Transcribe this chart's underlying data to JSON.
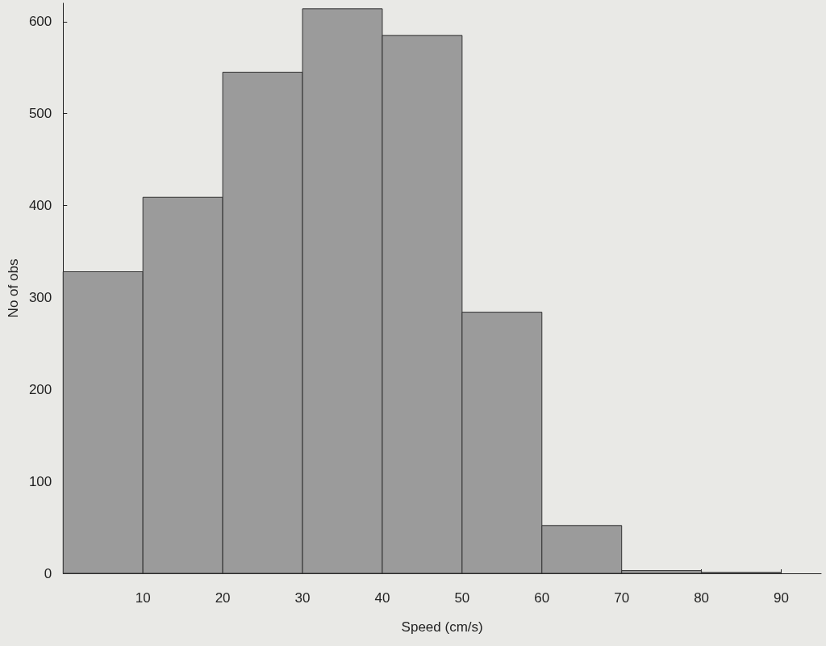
{
  "chart_data": {
    "type": "histogram",
    "xlabel": "Speed (cm/s)",
    "ylabel": "No of obs",
    "bins": [
      0,
      10,
      20,
      30,
      40,
      50,
      60,
      70,
      80,
      90
    ],
    "values": [
      328,
      409,
      545,
      614,
      585,
      284,
      52,
      3,
      1
    ],
    "color": "#9b9b9b",
    "xlim": [
      0,
      95
    ],
    "xticks": [
      10,
      20,
      30,
      40,
      50,
      60,
      70,
      80,
      90
    ],
    "ylim": [
      0,
      620
    ],
    "yticks": [
      0,
      100,
      200,
      300,
      400,
      500,
      600
    ],
    "grid": false
  }
}
